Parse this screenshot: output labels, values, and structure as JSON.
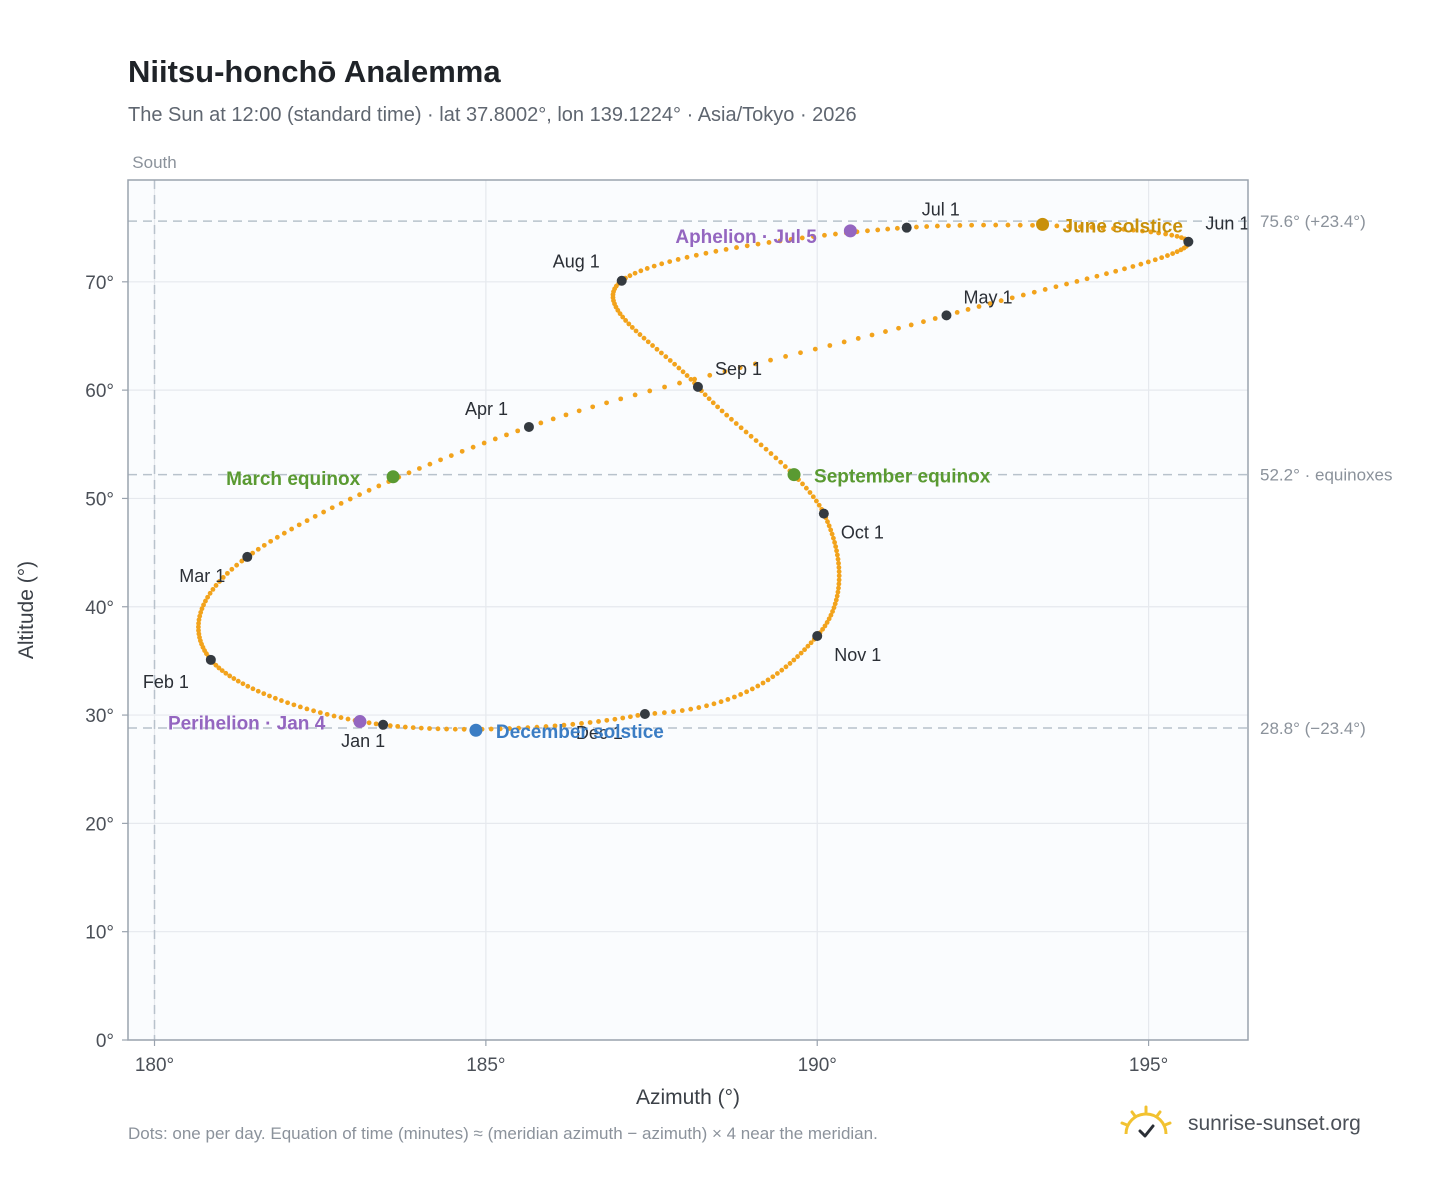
{
  "header": {
    "title": "Niitsu-honchō Analemma",
    "subtitle": "The Sun at 12:00 (standard time) · lat 37.8002°, lon 139.1224° · Asia/Tokyo · 2026"
  },
  "footer": {
    "note": "Dots: one per day. Equation of time (minutes) ≈ (meridian azimuth − azimuth) × 4 near the meridian.",
    "brand": "sunrise-sunset.org"
  },
  "colors": {
    "curve": "#f2a31c",
    "month_marker": "#343a40",
    "equinox": "#5a9a32",
    "june_solstice": "#c8900a",
    "december_solstice": "#3b7dc4",
    "apsis": "#9466c0",
    "frame": "#9aa3ae",
    "plot_bg": "#fafcfe"
  },
  "chart_data": {
    "type": "scatter",
    "xlabel": "Azimuth (°)",
    "ylabel": "Altitude (°)",
    "xlim": [
      179.6,
      196.5
    ],
    "ylim": [
      0,
      79.4
    ],
    "x_ticks": [
      {
        "value": 180,
        "label": "180°"
      },
      {
        "value": 185,
        "label": "185°"
      },
      {
        "value": 190,
        "label": "190°"
      },
      {
        "value": 195,
        "label": "195°"
      }
    ],
    "y_ticks": [
      {
        "value": 0,
        "label": "0°"
      },
      {
        "value": 10,
        "label": "10°"
      },
      {
        "value": 20,
        "label": "20°"
      },
      {
        "value": 30,
        "label": "30°"
      },
      {
        "value": 40,
        "label": "40°"
      },
      {
        "value": 50,
        "label": "50°"
      },
      {
        "value": 60,
        "label": "60°"
      },
      {
        "value": 70,
        "label": "70°"
      }
    ],
    "grid": true,
    "meridian": {
      "azimuth": 180,
      "label": "South"
    },
    "reference_lines": [
      {
        "altitude": 75.6,
        "label": "75.6° (+23.4°)"
      },
      {
        "altitude": 52.2,
        "label": "52.2° · equinoxes"
      },
      {
        "altitude": 28.8,
        "label": "28.8° (−23.4°)"
      }
    ],
    "year": 2026,
    "latitude": 37.8002,
    "longitude": 139.1224,
    "timezone": "Asia/Tokyo",
    "month_markers": [
      {
        "label": "Jan 1",
        "azimuth": 183.45,
        "altitude": 29.1
      },
      {
        "label": "Feb 1",
        "azimuth": 180.85,
        "altitude": 35.1
      },
      {
        "label": "Mar 1",
        "azimuth": 181.4,
        "altitude": 44.6
      },
      {
        "label": "Apr 1",
        "azimuth": 185.65,
        "altitude": 56.6
      },
      {
        "label": "May 1",
        "azimuth": 191.95,
        "altitude": 66.9
      },
      {
        "label": "Jun 1",
        "azimuth": 195.6,
        "altitude": 73.7
      },
      {
        "label": "Jul 1",
        "azimuth": 191.35,
        "altitude": 75.0
      },
      {
        "label": "Aug 1",
        "azimuth": 187.05,
        "altitude": 70.1
      },
      {
        "label": "Sep 1",
        "azimuth": 188.2,
        "altitude": 60.3
      },
      {
        "label": "Oct 1",
        "azimuth": 190.1,
        "altitude": 48.6
      },
      {
        "label": "Nov 1",
        "azimuth": 190.0,
        "altitude": 37.3
      },
      {
        "label": "Dec 1",
        "azimuth": 187.4,
        "altitude": 30.1
      }
    ],
    "events": [
      {
        "label": "March equinox",
        "azimuth": 183.6,
        "altitude": 52.0,
        "kind": "equinox"
      },
      {
        "label": "September equinox",
        "azimuth": 189.65,
        "altitude": 52.2,
        "kind": "equinox"
      },
      {
        "label": "June solstice",
        "azimuth": 193.4,
        "altitude": 75.3,
        "kind": "june_solstice"
      },
      {
        "label": "December solstice",
        "azimuth": 184.85,
        "altitude": 28.6,
        "kind": "december_solstice"
      },
      {
        "label": "Perihelion · Jan 4",
        "azimuth": 183.1,
        "altitude": 29.4,
        "kind": "apsis"
      },
      {
        "label": "Aphelion · Jul 5",
        "azimuth": 190.5,
        "altitude": 74.7,
        "kind": "apsis"
      }
    ]
  }
}
